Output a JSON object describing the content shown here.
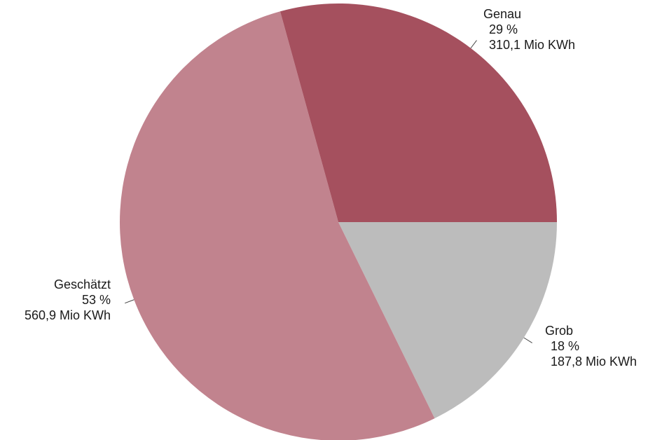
{
  "chart_data": {
    "type": "pie",
    "title": "",
    "start_angle_deg": 0,
    "direction": "clockwise",
    "slices": [
      {
        "name": "Grob",
        "percent_label": "18 %",
        "value_label": "187,8 Mio KWh",
        "value": 187.8,
        "color": "#bcbcbc"
      },
      {
        "name": "Geschätzt",
        "percent_label": "53 %",
        "value_label": "560,9 Mio KWh",
        "value": 560.9,
        "color": "#c1838e"
      },
      {
        "name": "Genau",
        "percent_label": "29 %",
        "value_label": "310,1 Mio KWh",
        "value": 310.1,
        "color": "#a5505e"
      }
    ]
  }
}
